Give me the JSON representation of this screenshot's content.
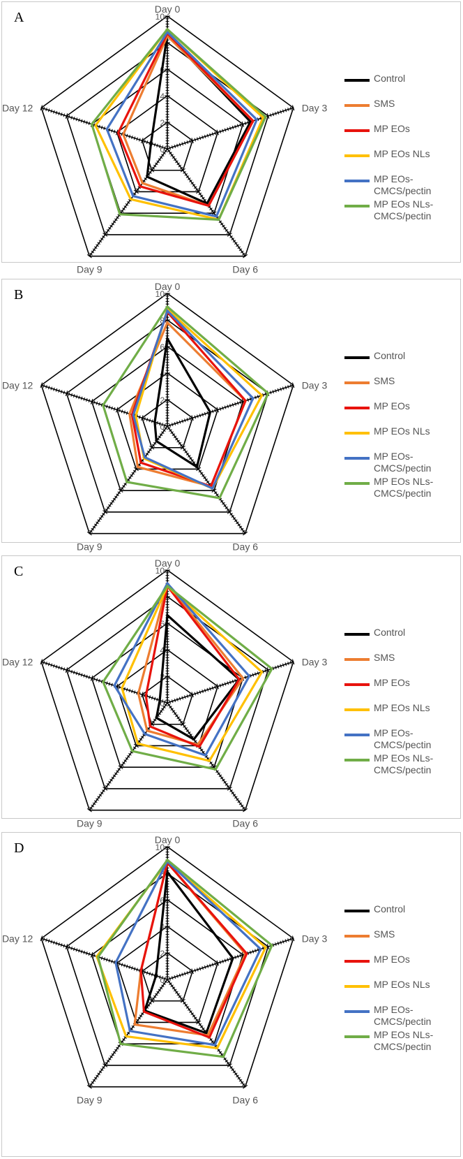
{
  "figure": {
    "legend_labels": [
      "Control",
      "SMS",
      "MP EOs",
      "MP EOs NLs",
      "MP EOs-\nCMCS/pectin",
      "MP EOs NLs-\nCMCS/pectin"
    ],
    "series_colors": [
      "#000000",
      "#ed7d31",
      "#e8130d",
      "#ffc000",
      "#4472c4",
      "#70ad47"
    ]
  },
  "chart_data": [
    {
      "panel": "A",
      "type": "radar",
      "axes": [
        "Day 0",
        "Day 3",
        "Day 6",
        "Day 9",
        "Day 12"
      ],
      "rlim": [
        0,
        10
      ],
      "rticks": [
        "0",
        "2",
        "4",
        "6",
        "8",
        "10"
      ],
      "series": [
        {
          "name": "Control",
          "values": [
            8.6,
            6.6,
            5.1,
            2.6,
            1.3
          ]
        },
        {
          "name": "SMS",
          "values": [
            8.5,
            6.8,
            5.3,
            3.2,
            3.5
          ]
        },
        {
          "name": "MP EOs",
          "values": [
            8.7,
            6.8,
            5.3,
            3.5,
            3.9
          ]
        },
        {
          "name": "MP EOs NLs",
          "values": [
            9.0,
            7.6,
            6.6,
            4.7,
            5.7
          ]
        },
        {
          "name": "MP EOs-CMCS/pectin",
          "values": [
            8.8,
            7.1,
            6.3,
            4.4,
            4.8
          ]
        },
        {
          "name": "MP EOs NLs-CMCS/pectin",
          "values": [
            9.0,
            7.8,
            6.6,
            6.1,
            6.0
          ]
        }
      ]
    },
    {
      "panel": "B",
      "type": "radar",
      "axes": [
        "Day 0",
        "Day 3",
        "Day 6",
        "Day 9",
        "Day 12"
      ],
      "rlim": [
        0,
        10
      ],
      "rticks": [
        "0",
        "2",
        "4",
        "6",
        "8",
        "10"
      ],
      "series": [
        {
          "name": "Control",
          "values": [
            6.6,
            3.4,
            3.8,
            1.4,
            1.0
          ]
        },
        {
          "name": "SMS",
          "values": [
            7.8,
            6.2,
            5.6,
            3.8,
            3.0
          ]
        },
        {
          "name": "MP EOs",
          "values": [
            8.6,
            6.2,
            5.6,
            3.4,
            2.8
          ]
        },
        {
          "name": "MP EOs NLs",
          "values": [
            8.8,
            7.5,
            5.8,
            3.0,
            2.5
          ]
        },
        {
          "name": "MP EOs-CMCS/pectin",
          "values": [
            8.7,
            6.8,
            5.8,
            2.9,
            2.7
          ]
        },
        {
          "name": "MP EOs NLs-CMCS/pectin",
          "values": [
            9.0,
            8.0,
            6.7,
            5.2,
            5.1
          ]
        }
      ]
    },
    {
      "panel": "C",
      "type": "radar",
      "axes": [
        "Day 0",
        "Day 3",
        "Day 6",
        "Day 9",
        "Day 12"
      ],
      "rlim": [
        0,
        10
      ],
      "rticks": [
        "0",
        "2",
        "4",
        "6",
        "8",
        "10"
      ],
      "series": [
        {
          "name": "Control",
          "values": [
            6.6,
            5.7,
            3.4,
            1.4,
            0.6
          ]
        },
        {
          "name": "SMS",
          "values": [
            8.9,
            6.0,
            3.9,
            2.6,
            2.3
          ]
        },
        {
          "name": "MP EOs",
          "values": [
            8.8,
            5.7,
            4.1,
            2.2,
            1.7
          ]
        },
        {
          "name": "MP EOs NLs",
          "values": [
            8.8,
            7.5,
            5.4,
            3.8,
            3.6
          ]
        },
        {
          "name": "MP EOs-CMCS/pectin",
          "values": [
            9.0,
            6.5,
            4.9,
            2.9,
            4.2
          ]
        },
        {
          "name": "MP EOs NLs-CMCS/pectin",
          "values": [
            8.8,
            8.3,
            6.2,
            4.5,
            5.1
          ]
        }
      ]
    },
    {
      "panel": "D",
      "type": "radar",
      "axes": [
        "Day 0",
        "Day 3",
        "Day 6",
        "Day 9",
        "Day 12"
      ],
      "rlim": [
        0,
        10
      ],
      "rticks": [
        "0",
        "2",
        "4",
        "6",
        "8",
        "10"
      ],
      "series": [
        {
          "name": "Control",
          "values": [
            8.1,
            5.2,
            5.0,
            2.9,
            0.9
          ]
        },
        {
          "name": "SMS",
          "values": [
            8.8,
            6.2,
            5.2,
            4.2,
            2.1
          ]
        },
        {
          "name": "MP EOs",
          "values": [
            8.8,
            6.3,
            5.4,
            3.0,
            2.1
          ]
        },
        {
          "name": "MP EOs NLs",
          "values": [
            8.9,
            7.8,
            6.4,
            5.3,
            5.6
          ]
        },
        {
          "name": "MP EOs-CMCS/pectin",
          "values": [
            8.9,
            7.4,
            6.1,
            4.8,
            4.1
          ]
        },
        {
          "name": "MP EOs NLs-CMCS/pectin",
          "values": [
            9.0,
            8.3,
            7.2,
            6.0,
            5.5
          ]
        }
      ]
    }
  ]
}
